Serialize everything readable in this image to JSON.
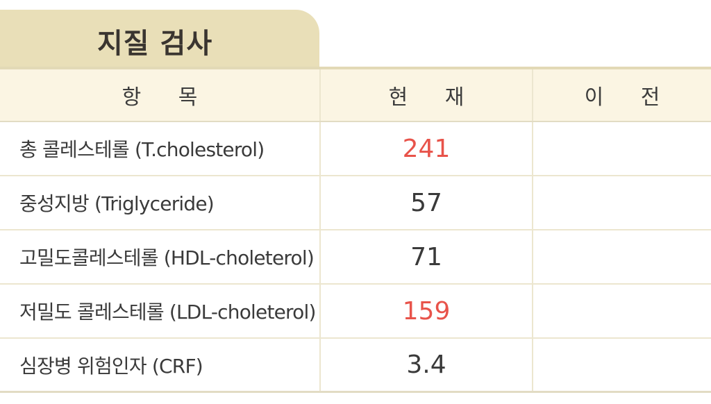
{
  "title": "지질 검사",
  "columns": {
    "item": "항 목",
    "current": "현 재",
    "previous": "이 전"
  },
  "rows": [
    {
      "label": "총 콜레스테롤 (T.cholesterol)",
      "current": "241",
      "previous": "",
      "highlight": true
    },
    {
      "label": "중성지방 (Triglyceride)",
      "current": "57",
      "previous": "",
      "highlight": false
    },
    {
      "label": "고밀도콜레스테롤 (HDL-choleterol)",
      "current": "71",
      "previous": "",
      "highlight": false
    },
    {
      "label": "저밀도 콜레스테롤 (LDL-choleterol)",
      "current": "159",
      "previous": "",
      "highlight": true
    },
    {
      "label": "심장병 위험인자 (CRF)",
      "current": "3.4",
      "previous": "",
      "highlight": false
    }
  ],
  "colors": {
    "tab_background": "#e9dfb8",
    "header_background": "#fbf5e3",
    "highlight_value": "#e8534a",
    "normal_value": "#3a3a3a"
  }
}
